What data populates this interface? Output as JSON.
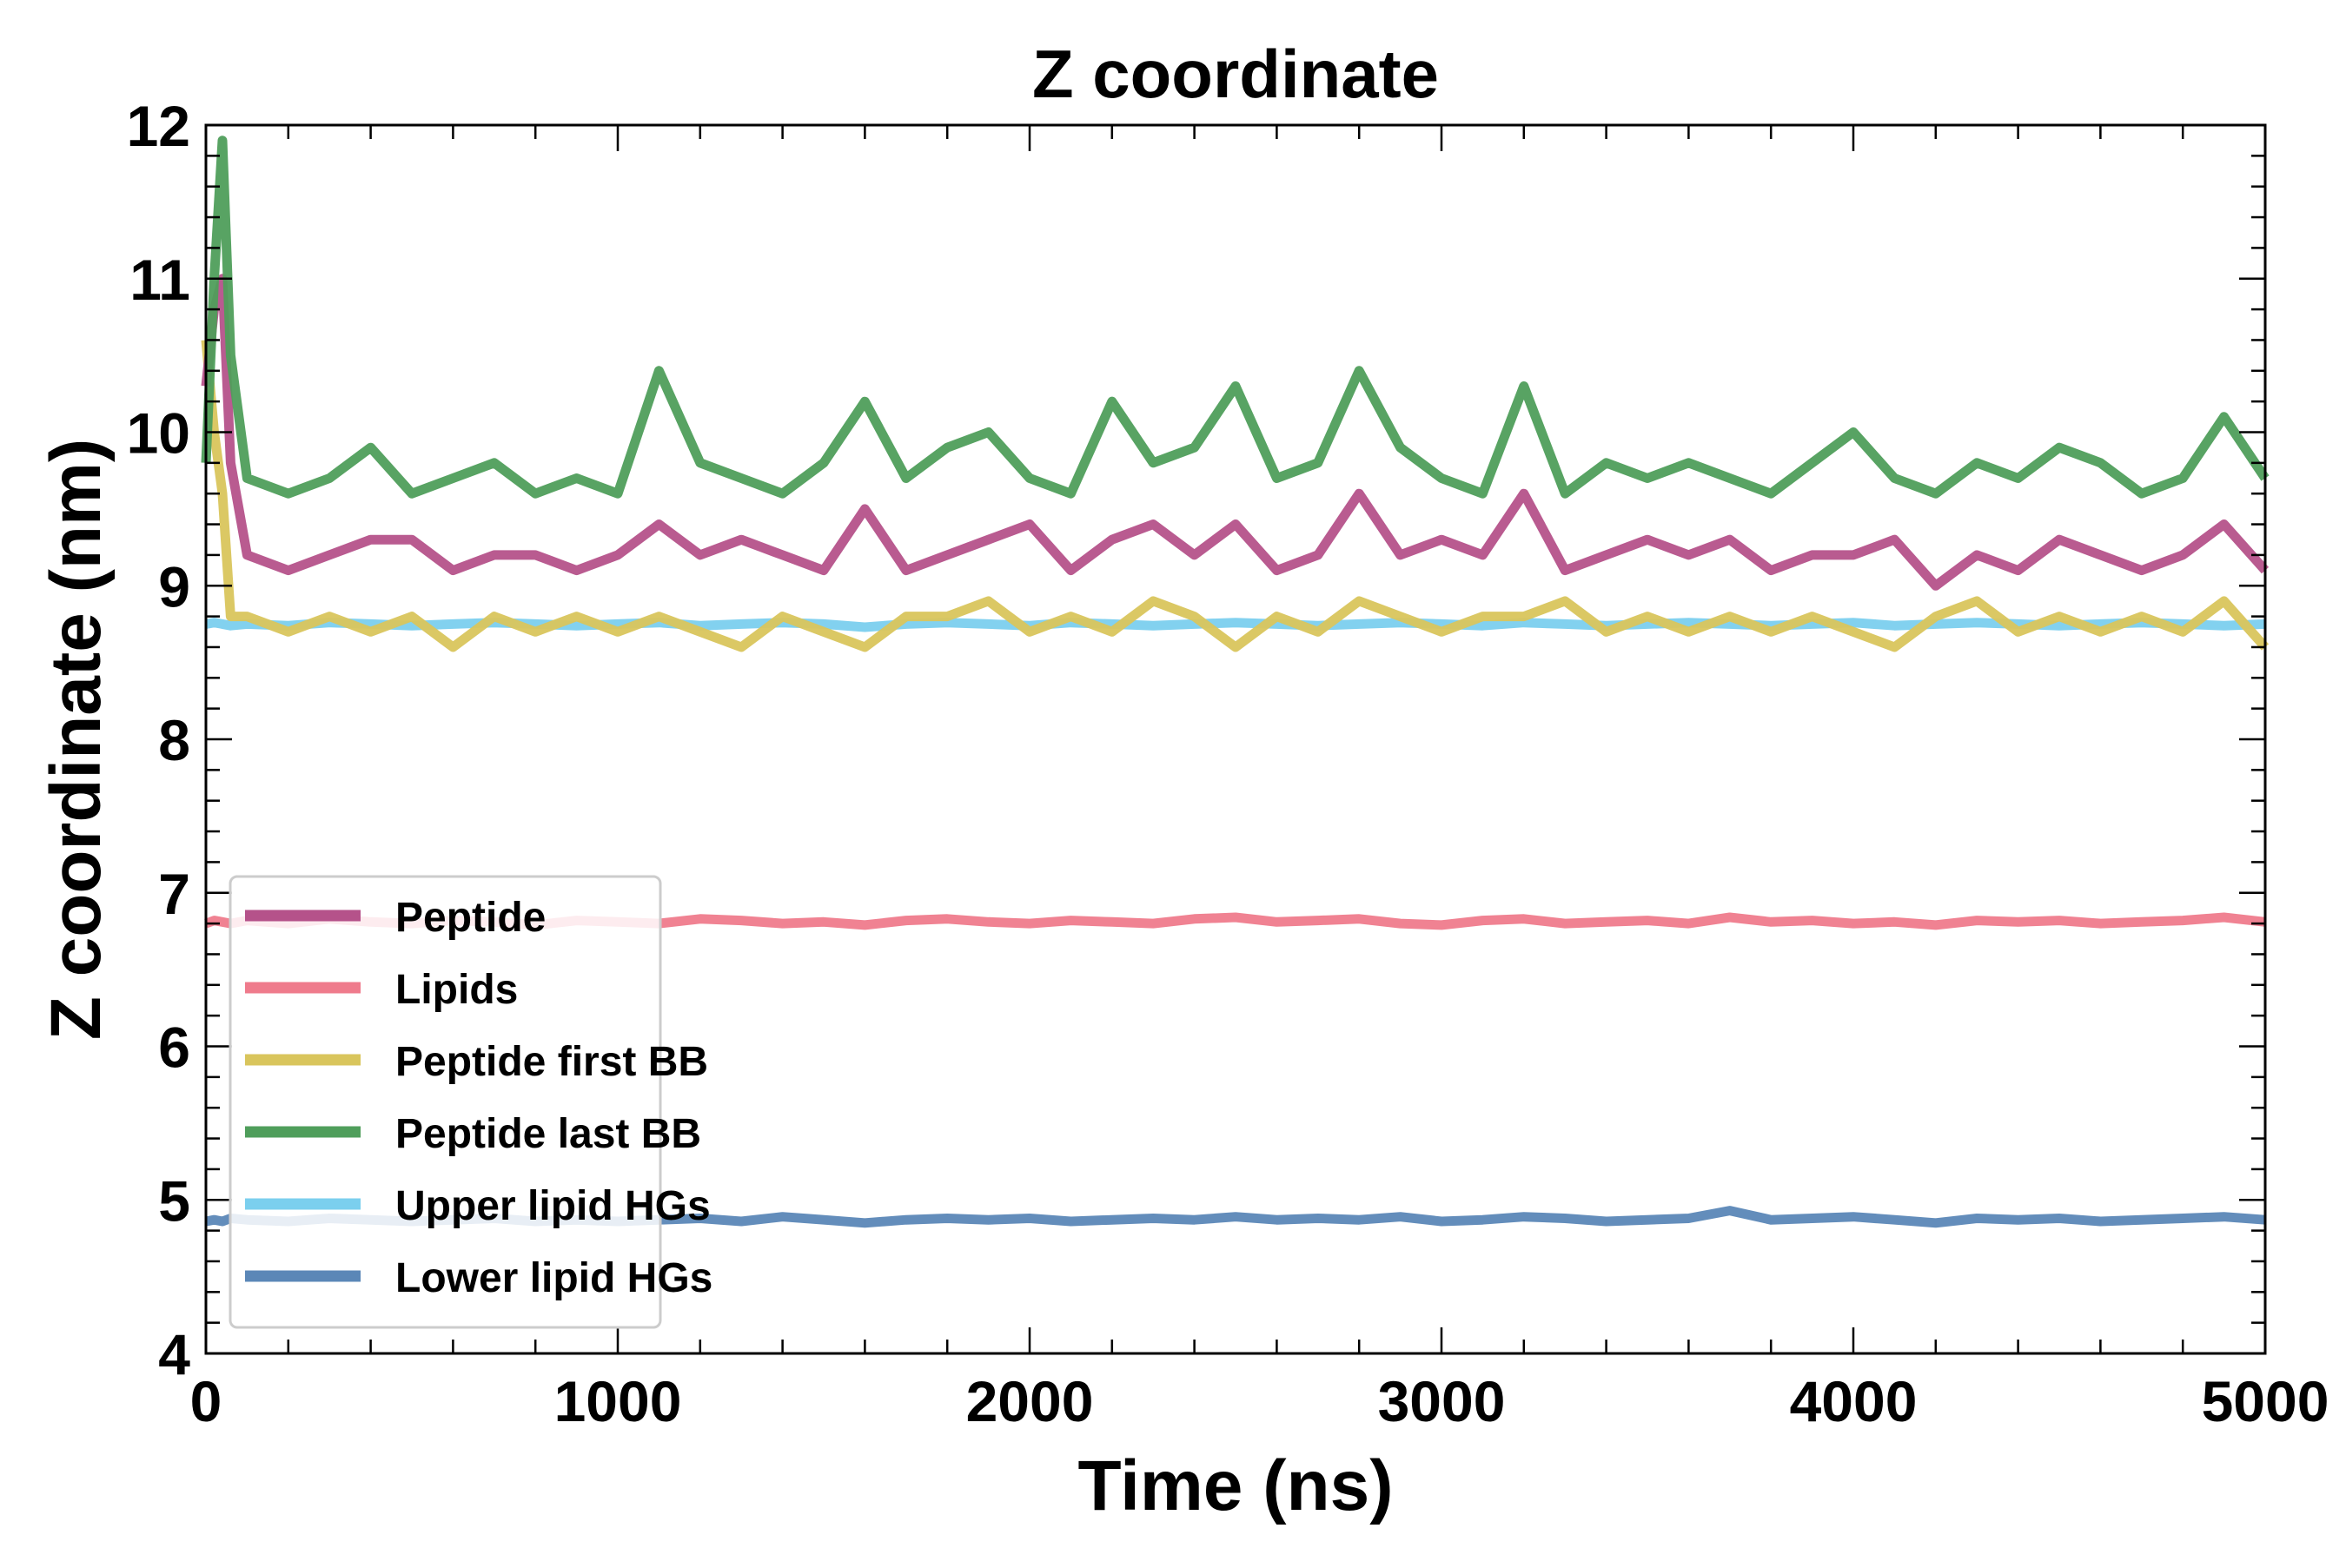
{
  "chart_data": {
    "type": "line",
    "title": "Z coordinate",
    "xlabel": "Time (ns)",
    "ylabel": "Z coordinate (nm)",
    "xlim": [
      0,
      5000
    ],
    "ylim": [
      4,
      12
    ],
    "xticks": [
      0,
      1000,
      2000,
      3000,
      4000,
      5000
    ],
    "yticks": [
      4,
      5,
      6,
      7,
      8,
      9,
      10,
      11,
      12
    ],
    "grid": false,
    "legend_position": "lower-left",
    "x": [
      0,
      20,
      40,
      60,
      100,
      200,
      300,
      400,
      500,
      600,
      700,
      800,
      900,
      1000,
      1100,
      1200,
      1300,
      1400,
      1500,
      1600,
      1700,
      1800,
      1900,
      2000,
      2100,
      2200,
      2300,
      2400,
      2500,
      2600,
      2700,
      2800,
      2900,
      3000,
      3100,
      3200,
      3300,
      3400,
      3500,
      3600,
      3700,
      3800,
      3900,
      4000,
      4100,
      4200,
      4300,
      4400,
      4500,
      4600,
      4700,
      4800,
      4900,
      5000
    ],
    "series": [
      {
        "name": "Peptide",
        "color": "#b5528a",
        "values": [
          10.3,
          10.8,
          11.0,
          9.8,
          9.2,
          9.1,
          9.2,
          9.3,
          9.3,
          9.1,
          9.2,
          9.2,
          9.1,
          9.2,
          9.4,
          9.2,
          9.3,
          9.2,
          9.1,
          9.5,
          9.1,
          9.2,
          9.3,
          9.4,
          9.1,
          9.3,
          9.4,
          9.2,
          9.4,
          9.1,
          9.2,
          9.6,
          9.2,
          9.3,
          9.2,
          9.6,
          9.1,
          9.2,
          9.3,
          9.2,
          9.3,
          9.1,
          9.2,
          9.2,
          9.3,
          9.0,
          9.2,
          9.1,
          9.3,
          9.2,
          9.1,
          9.2,
          9.4,
          9.1
        ]
      },
      {
        "name": "Lipids",
        "color": "#ef7b8c",
        "values": [
          6.8,
          6.82,
          6.81,
          6.8,
          6.82,
          6.8,
          6.83,
          6.81,
          6.8,
          6.82,
          6.81,
          6.79,
          6.82,
          6.81,
          6.8,
          6.83,
          6.82,
          6.8,
          6.81,
          6.79,
          6.82,
          6.83,
          6.81,
          6.8,
          6.82,
          6.81,
          6.8,
          6.83,
          6.84,
          6.81,
          6.82,
          6.83,
          6.8,
          6.79,
          6.82,
          6.83,
          6.8,
          6.81,
          6.82,
          6.8,
          6.84,
          6.81,
          6.82,
          6.8,
          6.81,
          6.79,
          6.82,
          6.81,
          6.82,
          6.8,
          6.81,
          6.82,
          6.84,
          6.81
        ]
      },
      {
        "name": "Peptide first BB",
        "color": "#d9c55c",
        "values": [
          10.6,
          10.0,
          9.6,
          8.8,
          8.8,
          8.7,
          8.8,
          8.7,
          8.8,
          8.6,
          8.8,
          8.7,
          8.8,
          8.7,
          8.8,
          8.7,
          8.6,
          8.8,
          8.7,
          8.6,
          8.8,
          8.8,
          8.9,
          8.7,
          8.8,
          8.7,
          8.9,
          8.8,
          8.6,
          8.8,
          8.7,
          8.9,
          8.8,
          8.7,
          8.8,
          8.8,
          8.9,
          8.7,
          8.8,
          8.7,
          8.8,
          8.7,
          8.8,
          8.7,
          8.6,
          8.8,
          8.9,
          8.7,
          8.8,
          8.7,
          8.8,
          8.7,
          8.9,
          8.6
        ]
      },
      {
        "name": "Peptide last BB",
        "color": "#4f9e5b",
        "values": [
          9.8,
          11.0,
          11.9,
          10.5,
          9.7,
          9.6,
          9.7,
          9.9,
          9.6,
          9.7,
          9.8,
          9.6,
          9.7,
          9.6,
          10.4,
          9.8,
          9.7,
          9.6,
          9.8,
          10.2,
          9.7,
          9.9,
          10.0,
          9.7,
          9.6,
          10.2,
          9.8,
          9.9,
          10.3,
          9.7,
          9.8,
          10.4,
          9.9,
          9.7,
          9.6,
          10.3,
          9.6,
          9.8,
          9.7,
          9.8,
          9.7,
          9.6,
          9.8,
          10.0,
          9.7,
          9.6,
          9.8,
          9.7,
          9.9,
          9.8,
          9.6,
          9.7,
          10.1,
          9.7
        ]
      },
      {
        "name": "Upper lipid HGs",
        "color": "#7bcfee",
        "values": [
          8.75,
          8.76,
          8.75,
          8.74,
          8.75,
          8.74,
          8.76,
          8.75,
          8.74,
          8.75,
          8.76,
          8.75,
          8.74,
          8.75,
          8.76,
          8.74,
          8.75,
          8.76,
          8.75,
          8.73,
          8.75,
          8.76,
          8.75,
          8.74,
          8.76,
          8.75,
          8.74,
          8.75,
          8.76,
          8.75,
          8.74,
          8.75,
          8.76,
          8.75,
          8.74,
          8.76,
          8.75,
          8.74,
          8.75,
          8.76,
          8.75,
          8.74,
          8.75,
          8.76,
          8.74,
          8.75,
          8.76,
          8.75,
          8.74,
          8.75,
          8.76,
          8.75,
          8.74,
          8.75
        ]
      },
      {
        "name": "Lower lipid HGs",
        "color": "#5b87b7",
        "values": [
          4.86,
          4.87,
          4.86,
          4.88,
          4.87,
          4.86,
          4.88,
          4.87,
          4.86,
          4.87,
          4.88,
          4.86,
          4.87,
          4.86,
          4.87,
          4.88,
          4.86,
          4.89,
          4.87,
          4.85,
          4.87,
          4.88,
          4.87,
          4.88,
          4.86,
          4.87,
          4.88,
          4.87,
          4.89,
          4.87,
          4.88,
          4.87,
          4.89,
          4.86,
          4.87,
          4.89,
          4.88,
          4.86,
          4.87,
          4.88,
          4.93,
          4.87,
          4.88,
          4.89,
          4.87,
          4.85,
          4.88,
          4.87,
          4.88,
          4.86,
          4.87,
          4.88,
          4.89,
          4.87
        ]
      }
    ]
  }
}
